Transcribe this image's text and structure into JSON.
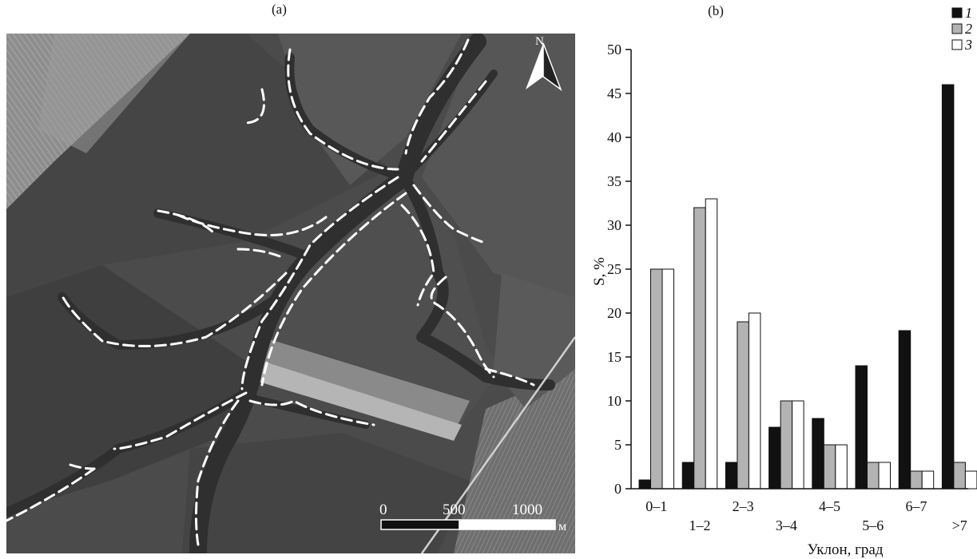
{
  "panels": {
    "left_label": "(a)",
    "right_label": "(b)"
  },
  "map": {
    "north_label": "N",
    "scale_labels": [
      "0",
      "500",
      "1000"
    ],
    "scale_unit": "м"
  },
  "chart_data": {
    "type": "bar",
    "title": "(b)",
    "categories": [
      "0–1",
      "1–2",
      "2–3",
      "3–4",
      "4–5",
      "5–6",
      "6–7",
      ">7"
    ],
    "xlabel": "Уклон, град",
    "ylabel": "S, %",
    "ylim": [
      0,
      50
    ],
    "yticks": [
      0,
      5,
      10,
      15,
      20,
      25,
      30,
      35,
      40,
      45,
      50
    ],
    "grid": false,
    "legend_position": "top-right",
    "series": [
      {
        "name": "1",
        "color": "#111111",
        "values": [
          1,
          3,
          3,
          7,
          8,
          14,
          18,
          46
        ]
      },
      {
        "name": "2",
        "color": "#b3b3b3",
        "values": [
          25,
          32,
          19,
          10,
          5,
          3,
          2,
          3
        ]
      },
      {
        "name": "3",
        "color": "#ffffff",
        "values": [
          25,
          33,
          20,
          10,
          5,
          3,
          2,
          2
        ]
      }
    ]
  }
}
